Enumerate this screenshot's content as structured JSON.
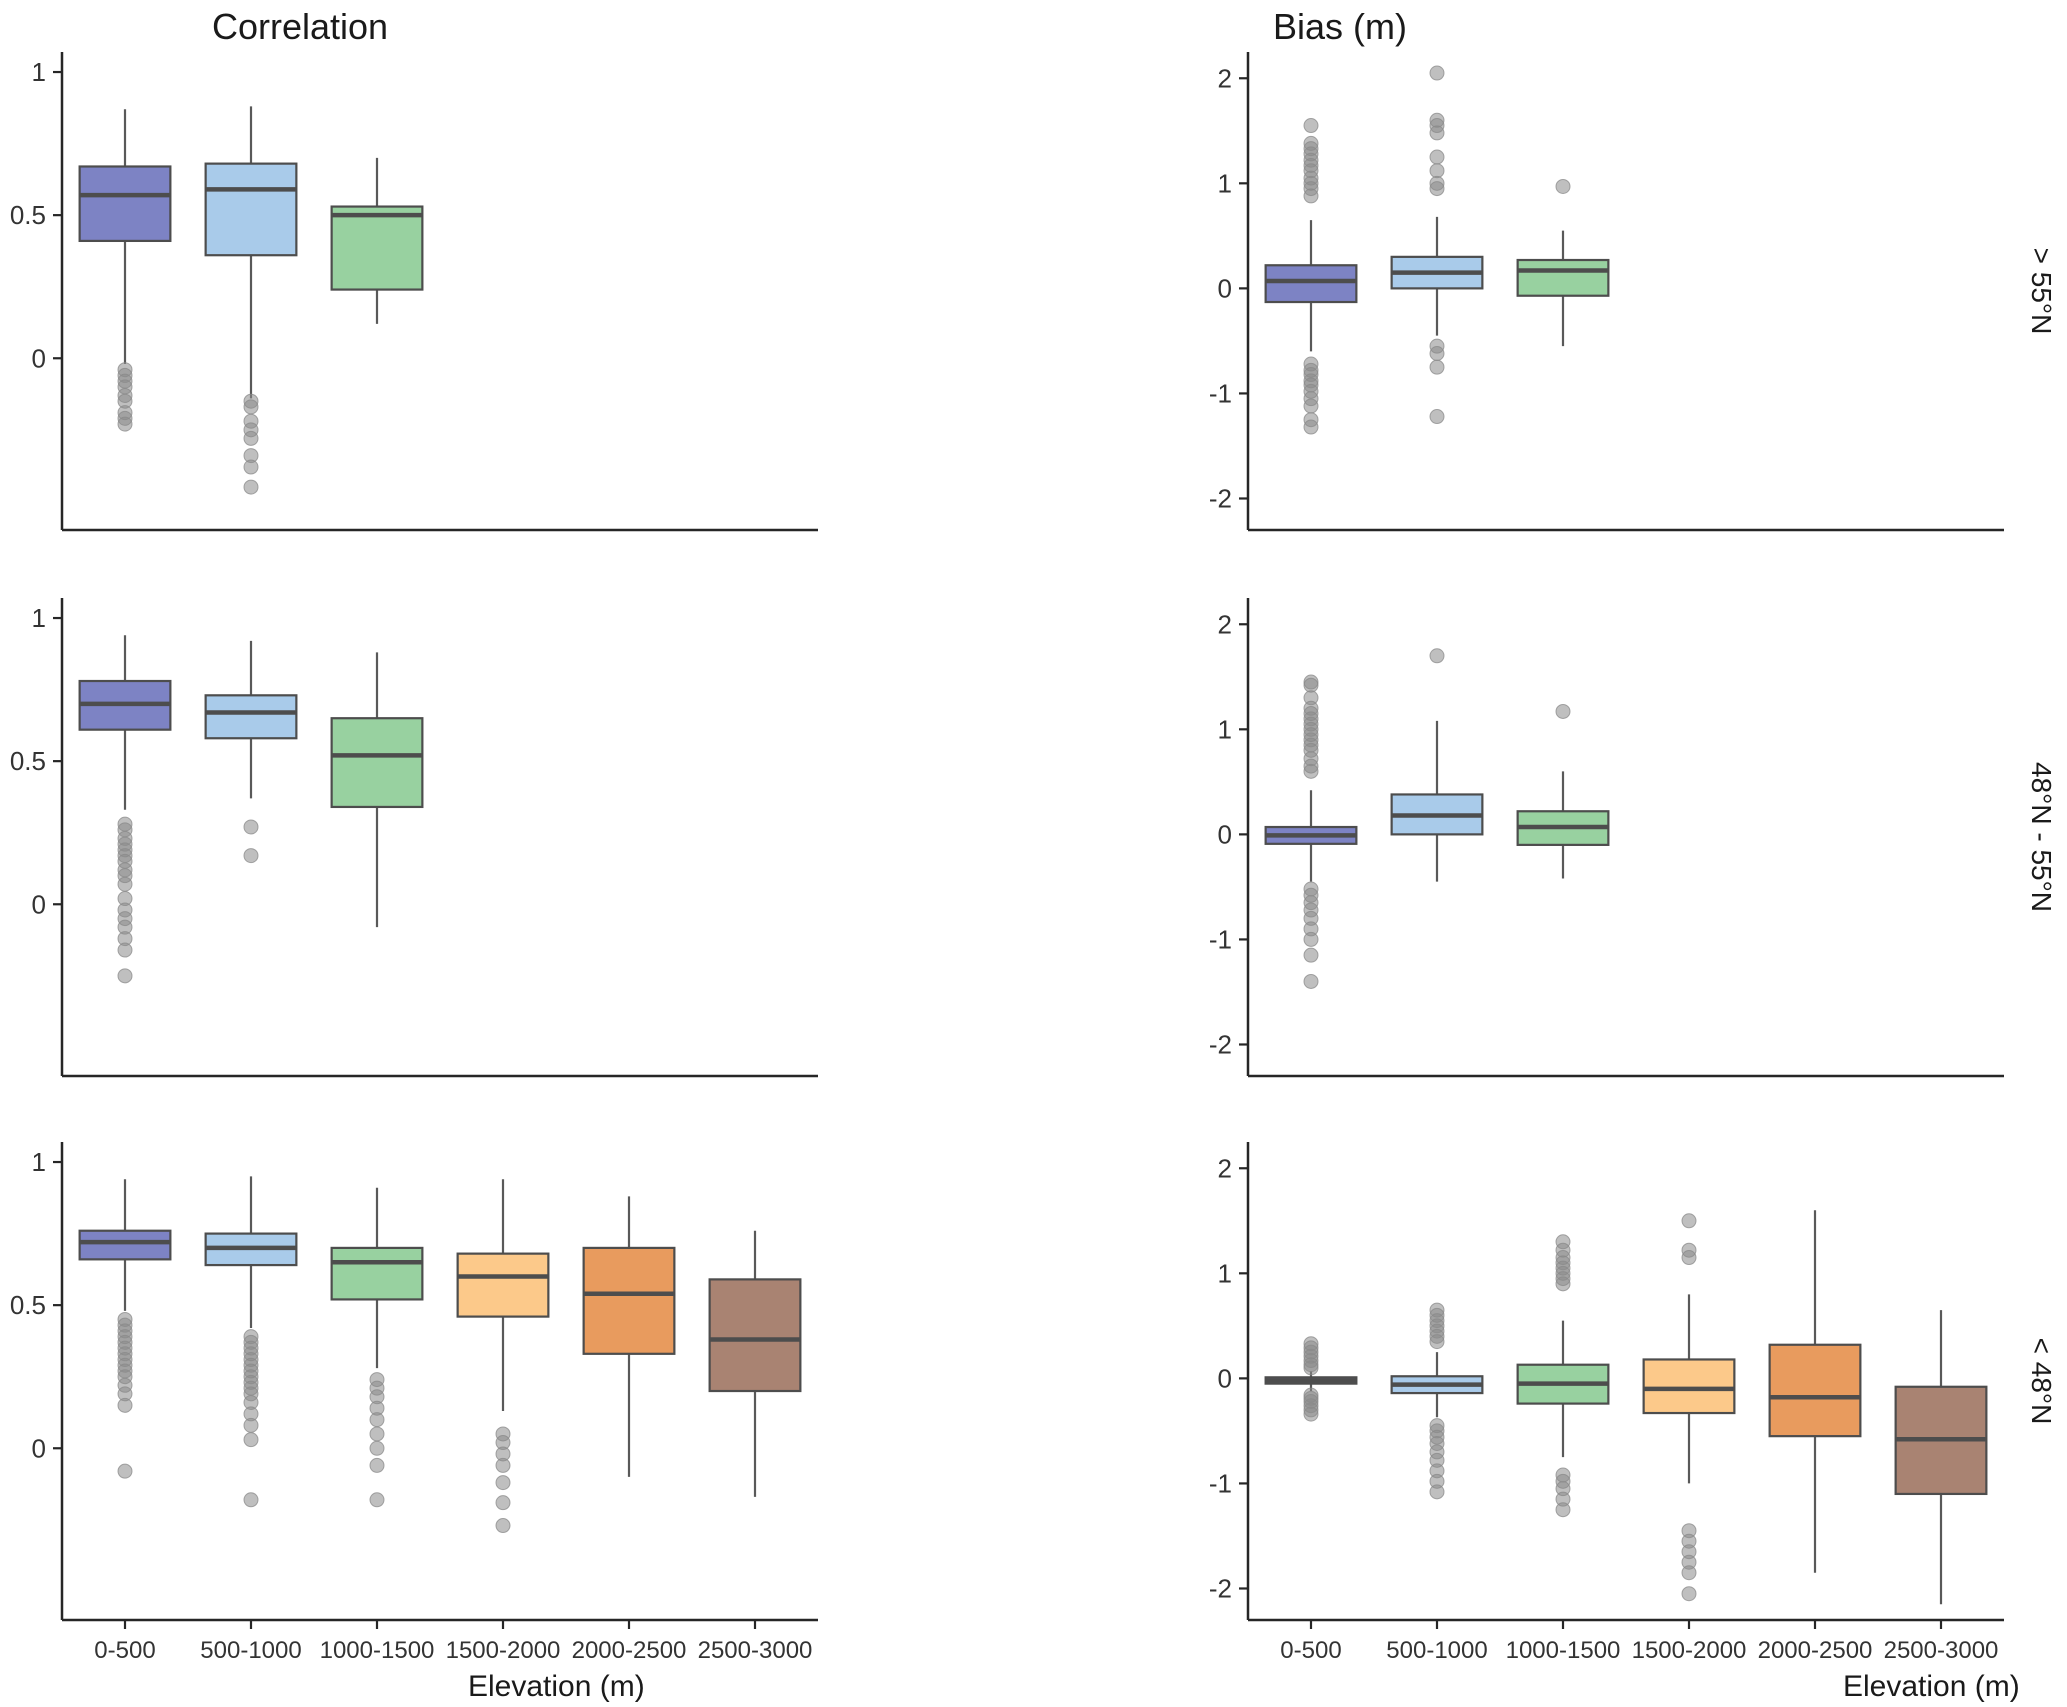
{
  "figure": {
    "column_titles": [
      "Correlation",
      "Bias (m)"
    ],
    "row_labels": [
      "> 55°N",
      "48°N - 55°N",
      "< 48°N"
    ],
    "x_axis_label": "Elevation (m)",
    "categories": [
      "0-500",
      "500-1000",
      "1000-1500",
      "1500-2000",
      "2000-2500",
      "2500-3000"
    ],
    "palette": {
      "0-500": "#7d83c4",
      "500-1000": "#a9cbea",
      "1000-1500": "#98d1a0",
      "1500-2000": "#fcc98a",
      "2000-2500": "#e89b5e",
      "2500-3000": "#a98372"
    },
    "box_border_color": "#4d4d4d",
    "outlier_color": "#8a8a8a",
    "axis_color": "#262626",
    "text_color": "#333333"
  },
  "chart_data": [
    {
      "type": "boxplot",
      "panel": "correlation_gt_55N",
      "column": "Correlation",
      "row": "> 55°N",
      "col_index": 0,
      "row_index": 0,
      "ylim": [
        -0.6,
        1.07
      ],
      "yticks": [
        0,
        0.5,
        1
      ],
      "boxes": [
        {
          "category": "0-500",
          "whisker_low": -0.02,
          "q1": 0.41,
          "median": 0.57,
          "q3": 0.67,
          "whisker_high": 0.87,
          "outliers": [
            -0.04,
            -0.06,
            -0.08,
            -0.1,
            -0.13,
            -0.15,
            -0.19,
            -0.21,
            -0.23
          ]
        },
        {
          "category": "500-1000",
          "whisker_low": -0.14,
          "q1": 0.36,
          "median": 0.59,
          "q3": 0.68,
          "whisker_high": 0.88,
          "outliers": [
            -0.15,
            -0.17,
            -0.22,
            -0.25,
            -0.28,
            -0.34,
            -0.38,
            -0.45
          ]
        },
        {
          "category": "1000-1500",
          "whisker_low": 0.12,
          "q1": 0.24,
          "median": 0.5,
          "q3": 0.53,
          "whisker_high": 0.7,
          "outliers": []
        }
      ]
    },
    {
      "type": "boxplot",
      "panel": "bias_gt_55N",
      "column": "Bias (m)",
      "row": "> 55°N",
      "col_index": 1,
      "row_index": 0,
      "ylim": [
        -2.3,
        2.25
      ],
      "yticks": [
        -2,
        -1,
        0,
        1,
        2
      ],
      "boxes": [
        {
          "category": "0-500",
          "whisker_low": -0.6,
          "q1": -0.13,
          "median": 0.07,
          "q3": 0.22,
          "whisker_high": 0.65,
          "outliers": [
            1.55,
            1.38,
            1.33,
            1.28,
            1.22,
            1.17,
            1.12,
            1.05,
            1.0,
            0.95,
            0.88,
            -0.72,
            -0.78,
            -0.82,
            -0.88,
            -0.92,
            -0.98,
            -1.05,
            -1.12,
            -1.25,
            -1.32
          ]
        },
        {
          "category": "500-1000",
          "whisker_low": -0.45,
          "q1": 0.0,
          "median": 0.15,
          "q3": 0.3,
          "whisker_high": 0.68,
          "outliers": [
            2.05,
            1.6,
            1.55,
            1.48,
            1.25,
            1.12,
            1.0,
            0.95,
            -0.55,
            -0.62,
            -0.75,
            -1.22
          ]
        },
        {
          "category": "1000-1500",
          "whisker_low": -0.55,
          "q1": -0.07,
          "median": 0.17,
          "q3": 0.27,
          "whisker_high": 0.55,
          "outliers": [
            0.97
          ]
        }
      ]
    },
    {
      "type": "boxplot",
      "panel": "correlation_48N_55N",
      "column": "Correlation",
      "row": "48°N - 55°N",
      "col_index": 0,
      "row_index": 1,
      "ylim": [
        -0.6,
        1.07
      ],
      "yticks": [
        0,
        0.5,
        1
      ],
      "boxes": [
        {
          "category": "0-500",
          "whisker_low": 0.33,
          "q1": 0.61,
          "median": 0.7,
          "q3": 0.78,
          "whisker_high": 0.94,
          "outliers": [
            0.28,
            0.26,
            0.23,
            0.21,
            0.19,
            0.17,
            0.15,
            0.12,
            0.1,
            0.07,
            0.02,
            -0.02,
            -0.05,
            -0.08,
            -0.12,
            -0.16,
            -0.25
          ]
        },
        {
          "category": "500-1000",
          "whisker_low": 0.37,
          "q1": 0.58,
          "median": 0.67,
          "q3": 0.73,
          "whisker_high": 0.92,
          "outliers": [
            0.27,
            0.17
          ]
        },
        {
          "category": "1000-1500",
          "whisker_low": -0.08,
          "q1": 0.34,
          "median": 0.52,
          "q3": 0.65,
          "whisker_high": 0.88,
          "outliers": []
        }
      ]
    },
    {
      "type": "boxplot",
      "panel": "bias_48N_55N",
      "column": "Bias (m)",
      "row": "48°N - 55°N",
      "col_index": 1,
      "row_index": 1,
      "ylim": [
        -2.3,
        2.25
      ],
      "yticks": [
        -2,
        -1,
        0,
        1,
        2
      ],
      "boxes": [
        {
          "category": "0-500",
          "whisker_low": -0.45,
          "q1": -0.09,
          "median": -0.01,
          "q3": 0.07,
          "whisker_high": 0.42,
          "outliers": [
            1.45,
            1.42,
            1.3,
            1.2,
            1.15,
            1.1,
            1.05,
            1.0,
            0.95,
            0.9,
            0.85,
            0.8,
            0.72,
            0.65,
            0.6,
            -0.52,
            -0.58,
            -0.65,
            -0.72,
            -0.8,
            -0.9,
            -1.0,
            -1.15,
            -1.4
          ]
        },
        {
          "category": "500-1000",
          "whisker_low": -0.45,
          "q1": 0.0,
          "median": 0.18,
          "q3": 0.38,
          "whisker_high": 1.08,
          "outliers": [
            1.7
          ]
        },
        {
          "category": "1000-1500",
          "whisker_low": -0.42,
          "q1": -0.1,
          "median": 0.07,
          "q3": 0.22,
          "whisker_high": 0.6,
          "outliers": [
            1.17
          ]
        }
      ]
    },
    {
      "type": "boxplot",
      "panel": "correlation_lt_48N",
      "column": "Correlation",
      "row": "< 48°N",
      "col_index": 0,
      "row_index": 2,
      "ylim": [
        -0.6,
        1.07
      ],
      "yticks": [
        0,
        0.5,
        1
      ],
      "boxes": [
        {
          "category": "0-500",
          "whisker_low": 0.48,
          "q1": 0.66,
          "median": 0.72,
          "q3": 0.76,
          "whisker_high": 0.94,
          "outliers": [
            0.45,
            0.43,
            0.41,
            0.39,
            0.37,
            0.35,
            0.33,
            0.31,
            0.29,
            0.27,
            0.25,
            0.22,
            0.19,
            0.15,
            -0.08
          ]
        },
        {
          "category": "500-1000",
          "whisker_low": 0.42,
          "q1": 0.64,
          "median": 0.7,
          "q3": 0.75,
          "whisker_high": 0.95,
          "outliers": [
            0.39,
            0.37,
            0.35,
            0.33,
            0.31,
            0.29,
            0.27,
            0.25,
            0.23,
            0.21,
            0.19,
            0.16,
            0.12,
            0.08,
            0.03,
            -0.18
          ]
        },
        {
          "category": "1000-1500",
          "whisker_low": 0.28,
          "q1": 0.52,
          "median": 0.65,
          "q3": 0.7,
          "whisker_high": 0.91,
          "outliers": [
            0.24,
            0.21,
            0.18,
            0.14,
            0.1,
            0.05,
            0.0,
            -0.06,
            -0.18
          ]
        },
        {
          "category": "1500-2000",
          "whisker_low": 0.13,
          "q1": 0.46,
          "median": 0.6,
          "q3": 0.68,
          "whisker_high": 0.94,
          "outliers": [
            0.05,
            0.02,
            -0.02,
            -0.06,
            -0.12,
            -0.19,
            -0.27
          ]
        },
        {
          "category": "2000-2500",
          "whisker_low": -0.1,
          "q1": 0.33,
          "median": 0.54,
          "q3": 0.7,
          "whisker_high": 0.88,
          "outliers": []
        },
        {
          "category": "2500-3000",
          "whisker_low": -0.17,
          "q1": 0.2,
          "median": 0.38,
          "q3": 0.59,
          "whisker_high": 0.76,
          "outliers": []
        }
      ]
    },
    {
      "type": "boxplot",
      "panel": "bias_lt_48N",
      "column": "Bias (m)",
      "row": "< 48°N",
      "col_index": 1,
      "row_index": 2,
      "ylim": [
        -2.3,
        2.25
      ],
      "yticks": [
        -2,
        -1,
        0,
        1,
        2
      ],
      "boxes": [
        {
          "category": "0-500",
          "whisker_low": -0.12,
          "q1": -0.05,
          "median": -0.02,
          "q3": 0.01,
          "whisker_high": 0.07,
          "outliers": [
            0.33,
            0.29,
            0.25,
            0.21,
            0.17,
            0.13,
            0.1,
            -0.16,
            -0.19,
            -0.22,
            -0.26,
            -0.3,
            -0.34
          ]
        },
        {
          "category": "500-1000",
          "whisker_low": -0.37,
          "q1": -0.14,
          "median": -0.06,
          "q3": 0.02,
          "whisker_high": 0.25,
          "outliers": [
            0.65,
            0.6,
            0.55,
            0.5,
            0.45,
            0.4,
            0.35,
            -0.45,
            -0.5,
            -0.56,
            -0.62,
            -0.7,
            -0.78,
            -0.88,
            -0.98,
            -1.08
          ]
        },
        {
          "category": "1000-1500",
          "whisker_low": -0.75,
          "q1": -0.24,
          "median": -0.05,
          "q3": 0.13,
          "whisker_high": 0.55,
          "outliers": [
            1.3,
            1.22,
            1.15,
            1.1,
            1.05,
            1.0,
            0.95,
            0.9,
            -0.92,
            -0.98,
            -1.05,
            -1.15,
            -1.25
          ]
        },
        {
          "category": "1500-2000",
          "whisker_low": -1.0,
          "q1": -0.33,
          "median": -0.1,
          "q3": 0.18,
          "whisker_high": 0.8,
          "outliers": [
            1.5,
            1.22,
            1.15,
            -1.45,
            -1.55,
            -1.65,
            -1.75,
            -1.85,
            -2.05
          ]
        },
        {
          "category": "2000-2500",
          "whisker_low": -1.85,
          "q1": -0.55,
          "median": -0.18,
          "q3": 0.32,
          "whisker_high": 1.6,
          "outliers": []
        },
        {
          "category": "2500-3000",
          "whisker_low": -2.15,
          "q1": -1.1,
          "median": -0.58,
          "q3": -0.08,
          "whisker_high": 0.65,
          "outliers": []
        }
      ]
    }
  ]
}
